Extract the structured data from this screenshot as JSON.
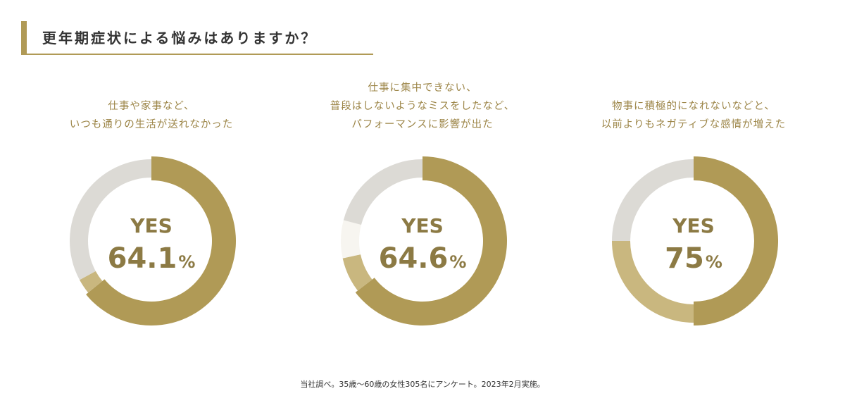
{
  "header": {
    "title": "更年期症状による悩みはありますか？"
  },
  "colors": {
    "accent": "#b09a56",
    "secondary": "#c9b77f",
    "tertiary": "#f7f5f0",
    "remainder": "#dcdad5",
    "label": "#8c7a44",
    "caption": "#9c8547"
  },
  "chart_data": [
    {
      "type": "pie",
      "caption_lines": [
        "仕事や家事など、",
        "いつも通りの生活が送れなかった"
      ],
      "center_label": "YES",
      "center_value": "64.1",
      "center_unit": "%",
      "slices": [
        64.1,
        3.0,
        32.9
      ]
    },
    {
      "type": "pie",
      "caption_lines": [
        "仕事に集中できない、",
        "普段はしないようなミスをしたなど、",
        "パフォーマンスに影響が出た"
      ],
      "center_label": "YES",
      "center_value": "64.6",
      "center_unit": "%",
      "slices": [
        64.6,
        7.0,
        7.5,
        20.9
      ]
    },
    {
      "type": "pie",
      "caption_lines": [
        "物事に積極的になれないなどと、",
        "以前よりもネガティブな感情が増えた"
      ],
      "center_label": "YES",
      "center_value": "75",
      "center_unit": "%",
      "slices": [
        50.0,
        25.0,
        25.0
      ]
    }
  ],
  "footnote": "当社調べ。35歳〜60歳の女性305名にアンケート。2023年2月実施。"
}
